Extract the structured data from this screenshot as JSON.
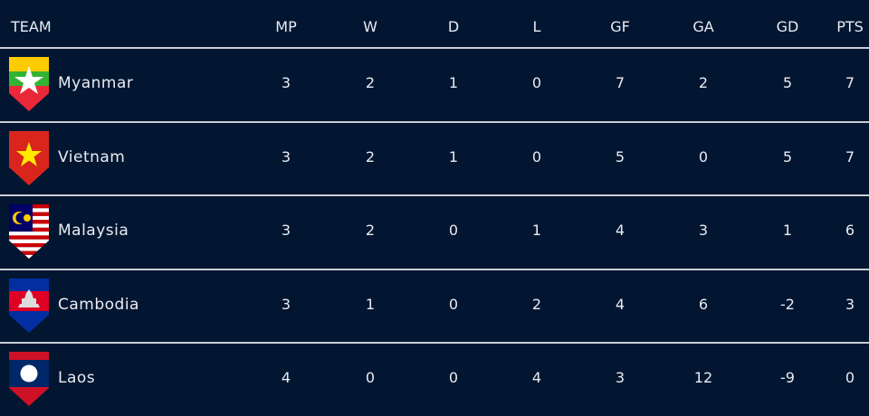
{
  "columns": {
    "team": "TEAM",
    "mp": "MP",
    "w": "W",
    "d": "D",
    "l": "L",
    "gf": "GF",
    "ga": "GA",
    "gd": "GD",
    "pts": "PTS"
  },
  "rows": [
    {
      "team": "Myanmar",
      "flag": "myanmar-flag-icon",
      "mp": "3",
      "w": "2",
      "d": "1",
      "l": "0",
      "gf": "7",
      "ga": "2",
      "gd": "5",
      "pts": "7"
    },
    {
      "team": "Vietnam",
      "flag": "vietnam-flag-icon",
      "mp": "3",
      "w": "2",
      "d": "1",
      "l": "0",
      "gf": "5",
      "ga": "0",
      "gd": "5",
      "pts": "7"
    },
    {
      "team": "Malaysia",
      "flag": "malaysia-flag-icon",
      "mp": "3",
      "w": "2",
      "d": "0",
      "l": "1",
      "gf": "4",
      "ga": "3",
      "gd": "1",
      "pts": "6"
    },
    {
      "team": "Cambodia",
      "flag": "cambodia-flag-icon",
      "mp": "3",
      "w": "1",
      "d": "0",
      "l": "2",
      "gf": "4",
      "ga": "6",
      "gd": "-2",
      "pts": "3"
    },
    {
      "team": "Laos",
      "flag": "laos-flag-icon",
      "mp": "4",
      "w": "0",
      "d": "0",
      "l": "4",
      "gf": "3",
      "ga": "12",
      "gd": "-9",
      "pts": "0"
    }
  ],
  "colors": {
    "background": "#031631",
    "text": "#e8ecf2",
    "divider": "#c9ced6"
  }
}
